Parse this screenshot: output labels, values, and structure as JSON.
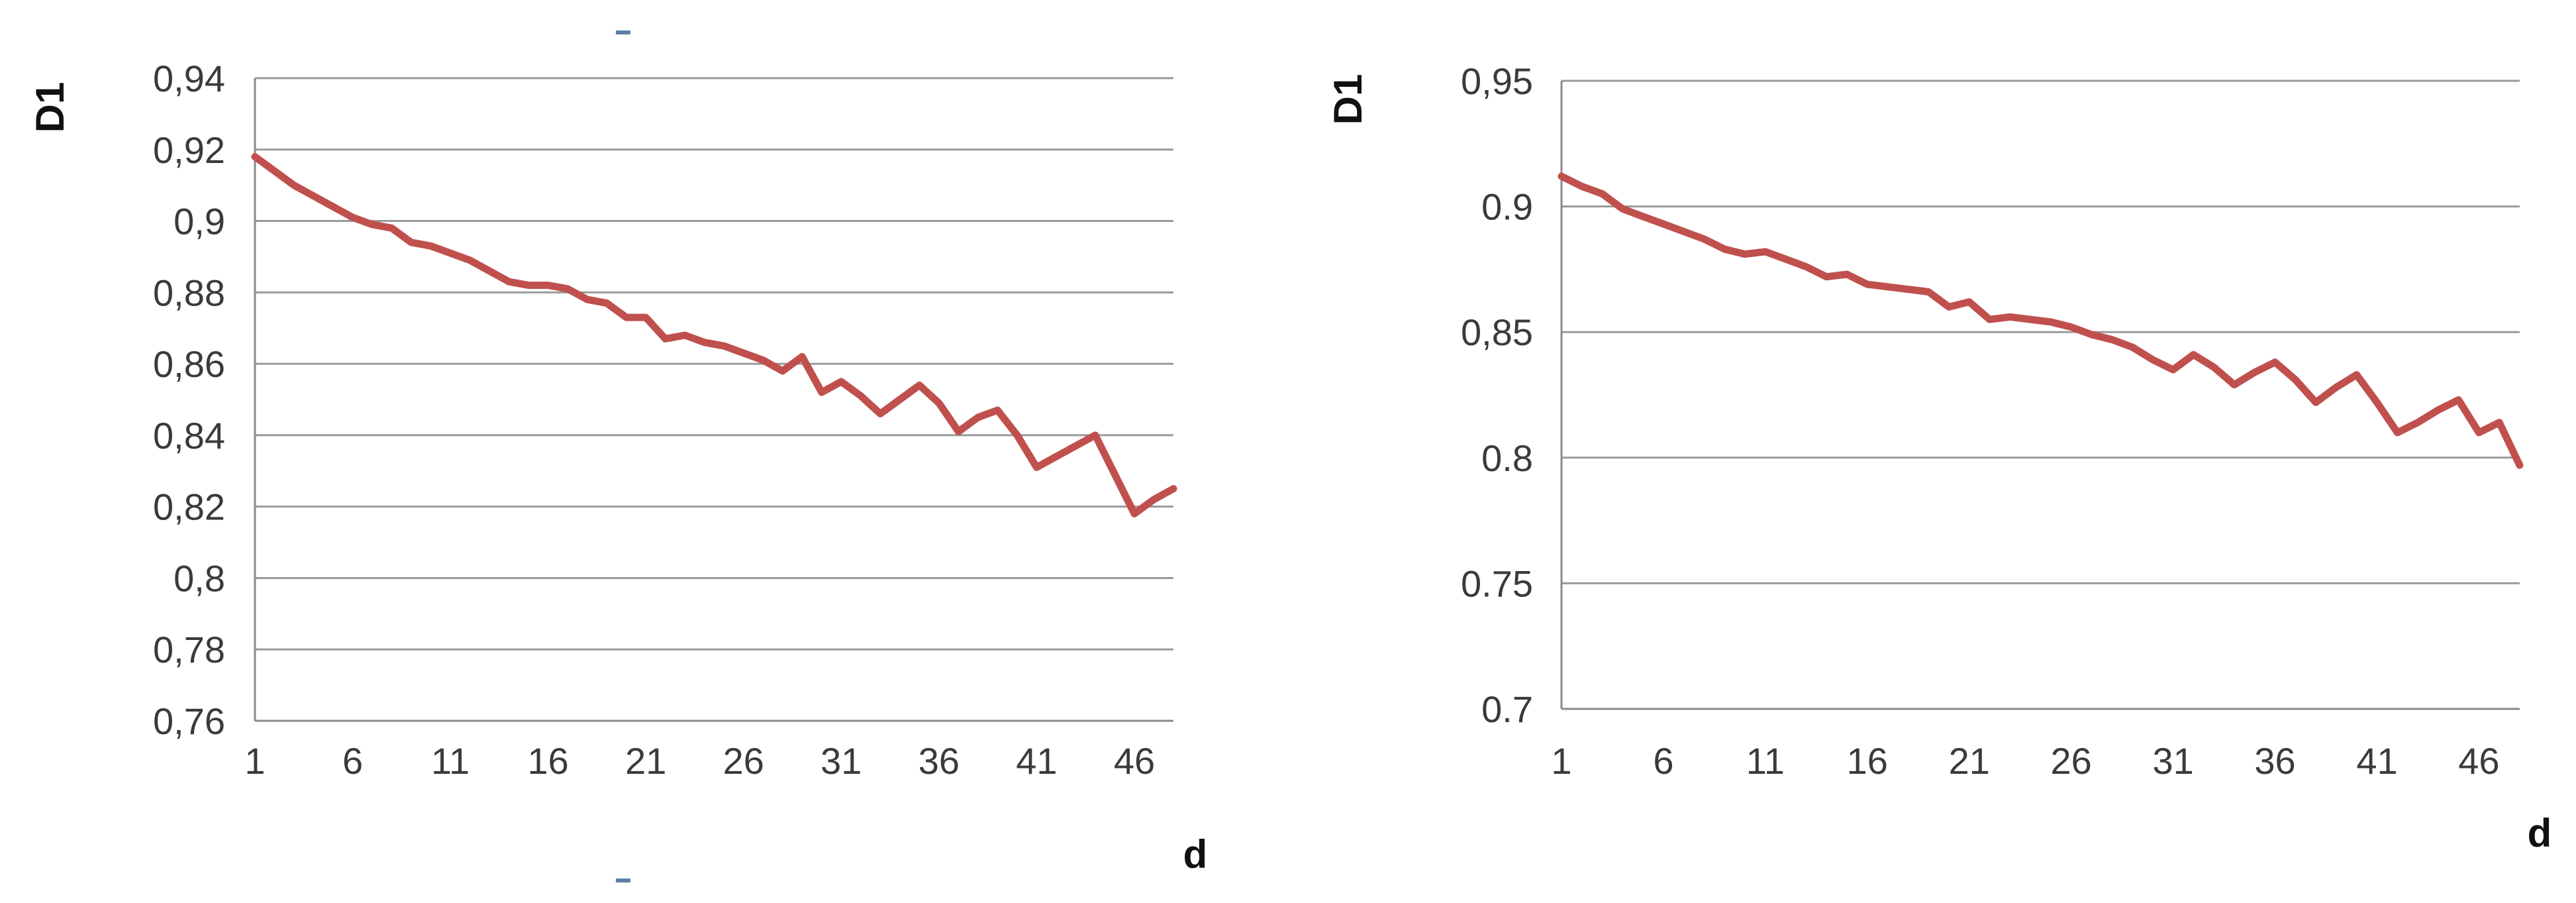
{
  "chart_data": [
    {
      "type": "line",
      "xlabel": "d",
      "ylabel": "D1",
      "xticks": [
        "1",
        "6",
        "11",
        "16",
        "21",
        "26",
        "31",
        "36",
        "41",
        "46"
      ],
      "yticks": [
        "0,76",
        "0,78",
        "0,8",
        "0,82",
        "0,84",
        "0,86",
        "0,88",
        "0,9",
        "0,92",
        "0,94"
      ],
      "ylim": [
        0.76,
        0.94
      ],
      "xlim": [
        1,
        48
      ],
      "grid": "horizontal",
      "series": [
        {
          "color": "#c0504d",
          "x": [
            1,
            2,
            3,
            4,
            5,
            6,
            7,
            8,
            9,
            10,
            11,
            12,
            13,
            14,
            15,
            16,
            17,
            18,
            19,
            20,
            21,
            22,
            23,
            24,
            25,
            26,
            27,
            28,
            29,
            30,
            31,
            32,
            33,
            34,
            35,
            36,
            37,
            38,
            39,
            40,
            41,
            42,
            43,
            44,
            45,
            46,
            47,
            48
          ],
          "y": [
            0.918,
            0.914,
            0.91,
            0.907,
            0.904,
            0.901,
            0.899,
            0.898,
            0.894,
            0.893,
            0.891,
            0.889,
            0.886,
            0.883,
            0.882,
            0.882,
            0.881,
            0.878,
            0.877,
            0.873,
            0.873,
            0.867,
            0.868,
            0.866,
            0.865,
            0.863,
            0.861,
            0.858,
            0.862,
            0.852,
            0.855,
            0.851,
            0.846,
            0.85,
            0.854,
            0.849,
            0.841,
            0.845,
            0.847,
            0.84,
            0.831,
            0.834,
            0.837,
            0.84,
            0.829,
            0.818,
            0.822,
            0.825
          ]
        }
      ]
    },
    {
      "type": "line",
      "xlabel": "d",
      "ylabel": "D1",
      "xticks": [
        "1",
        "6",
        "11",
        "16",
        "21",
        "26",
        "31",
        "36",
        "41",
        "46"
      ],
      "yticks": [
        "0.7",
        "0.75",
        "0.8",
        "0,85",
        "0.9",
        "0,95"
      ],
      "ylim": [
        0.7,
        0.95
      ],
      "xlim": [
        1,
        48
      ],
      "grid": "horizontal",
      "series": [
        {
          "color": "#c0504d",
          "x": [
            1,
            2,
            3,
            4,
            5,
            6,
            7,
            8,
            9,
            10,
            11,
            12,
            13,
            14,
            15,
            16,
            17,
            18,
            19,
            20,
            21,
            22,
            23,
            24,
            25,
            26,
            27,
            28,
            29,
            30,
            31,
            32,
            33,
            34,
            35,
            36,
            37,
            38,
            39,
            40,
            41,
            42,
            43,
            44,
            45,
            46,
            47,
            48
          ],
          "y": [
            0.912,
            0.908,
            0.905,
            0.899,
            0.896,
            0.893,
            0.89,
            0.887,
            0.883,
            0.881,
            0.882,
            0.879,
            0.876,
            0.872,
            0.873,
            0.869,
            0.868,
            0.867,
            0.866,
            0.86,
            0.862,
            0.855,
            0.856,
            0.855,
            0.854,
            0.852,
            0.849,
            0.847,
            0.844,
            0.839,
            0.835,
            0.841,
            0.836,
            0.829,
            0.834,
            0.838,
            0.831,
            0.822,
            0.828,
            0.833,
            0.822,
            0.81,
            0.814,
            0.819,
            0.823,
            0.81,
            0.814,
            0.797
          ]
        }
      ]
    }
  ]
}
